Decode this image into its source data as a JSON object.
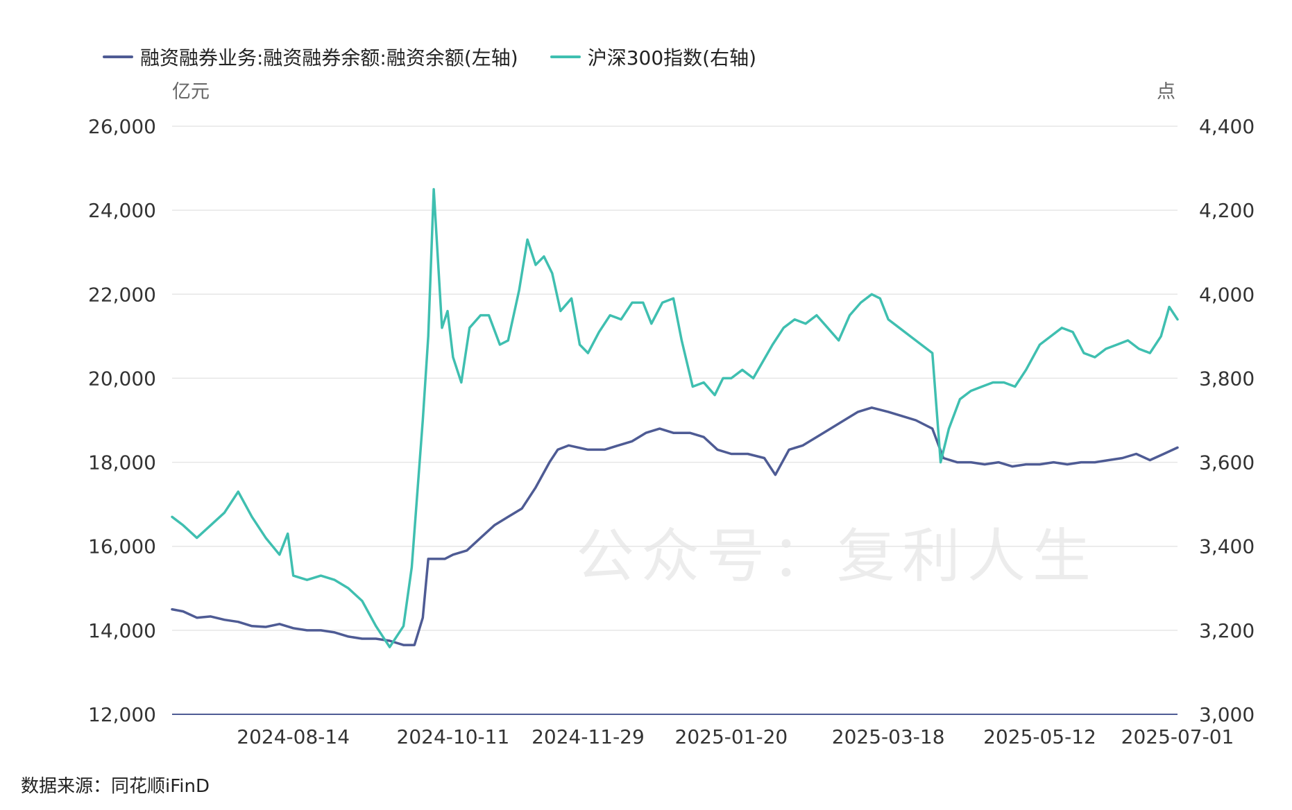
{
  "legend": {
    "series1": "融资融券业务:融资融券余额:融资余额(左轴)",
    "series2": "沪深300指数(右轴)"
  },
  "units": {
    "left": "亿元",
    "right": "点"
  },
  "source": "数据来源：同花顺iFinD",
  "watermark": "公众号：复利人生",
  "colors": {
    "margin": "#4e5b94",
    "index": "#3fbfb0",
    "grid": "#e6e6e6",
    "axis": "#4e5b94"
  },
  "chart_data": {
    "type": "line",
    "x_ticks": [
      "2024-08-14",
      "2024-10-11",
      "2024-11-29",
      "2025-01-20",
      "2025-03-18",
      "2025-05-12",
      "2025-07-01"
    ],
    "y_left": {
      "min": 12000,
      "max": 26000,
      "ticks": [
        "12,000",
        "14,000",
        "16,000",
        "18,000",
        "20,000",
        "22,000",
        "24,000",
        "26,000"
      ]
    },
    "y_right": {
      "min": 3000,
      "max": 4400,
      "ticks": [
        "3,000",
        "3,200",
        "3,400",
        "3,600",
        "3,800",
        "4,000",
        "4,200",
        "4,400"
      ]
    },
    "series": [
      {
        "name": "融资融券业务:融资融券余额:融资余额(左轴)",
        "axis": "left",
        "points": [
          [
            "2024-07-01",
            14500
          ],
          [
            "2024-07-05",
            14450
          ],
          [
            "2024-07-10",
            14300
          ],
          [
            "2024-07-15",
            14330
          ],
          [
            "2024-07-20",
            14250
          ],
          [
            "2024-07-25",
            14200
          ],
          [
            "2024-07-30",
            14100
          ],
          [
            "2024-08-04",
            14080
          ],
          [
            "2024-08-09",
            14150
          ],
          [
            "2024-08-14",
            14050
          ],
          [
            "2024-08-19",
            14000
          ],
          [
            "2024-08-24",
            14000
          ],
          [
            "2024-08-29",
            13950
          ],
          [
            "2024-09-03",
            13850
          ],
          [
            "2024-09-08",
            13800
          ],
          [
            "2024-09-13",
            13800
          ],
          [
            "2024-09-18",
            13750
          ],
          [
            "2024-09-23",
            13650
          ],
          [
            "2024-09-27",
            13650
          ],
          [
            "2024-09-30",
            14300
          ],
          [
            "2024-10-02",
            15700
          ],
          [
            "2024-10-08",
            15700
          ],
          [
            "2024-10-11",
            15800
          ],
          [
            "2024-10-16",
            15900
          ],
          [
            "2024-10-21",
            16200
          ],
          [
            "2024-10-26",
            16500
          ],
          [
            "2024-10-31",
            16700
          ],
          [
            "2024-11-05",
            16900
          ],
          [
            "2024-11-10",
            17400
          ],
          [
            "2024-11-15",
            18000
          ],
          [
            "2024-11-18",
            18300
          ],
          [
            "2024-11-22",
            18400
          ],
          [
            "2024-11-29",
            18300
          ],
          [
            "2024-12-05",
            18300
          ],
          [
            "2024-12-10",
            18400
          ],
          [
            "2024-12-15",
            18500
          ],
          [
            "2024-12-20",
            18700
          ],
          [
            "2024-12-25",
            18800
          ],
          [
            "2024-12-30",
            18700
          ],
          [
            "2025-01-05",
            18700
          ],
          [
            "2025-01-10",
            18600
          ],
          [
            "2025-01-15",
            18300
          ],
          [
            "2025-01-20",
            18200
          ],
          [
            "2025-01-26",
            18200
          ],
          [
            "2025-02-01",
            18100
          ],
          [
            "2025-02-05",
            17700
          ],
          [
            "2025-02-10",
            18300
          ],
          [
            "2025-02-15",
            18400
          ],
          [
            "2025-02-20",
            18600
          ],
          [
            "2025-02-25",
            18800
          ],
          [
            "2025-03-02",
            19000
          ],
          [
            "2025-03-07",
            19200
          ],
          [
            "2025-03-12",
            19300
          ],
          [
            "2025-03-18",
            19200
          ],
          [
            "2025-03-23",
            19100
          ],
          [
            "2025-03-28",
            19000
          ],
          [
            "2025-04-03",
            18800
          ],
          [
            "2025-04-07",
            18100
          ],
          [
            "2025-04-12",
            18000
          ],
          [
            "2025-04-17",
            18000
          ],
          [
            "2025-04-22",
            17950
          ],
          [
            "2025-04-27",
            18000
          ],
          [
            "2025-05-02",
            17900
          ],
          [
            "2025-05-07",
            17950
          ],
          [
            "2025-05-12",
            17950
          ],
          [
            "2025-05-17",
            18000
          ],
          [
            "2025-05-22",
            17950
          ],
          [
            "2025-05-27",
            18000
          ],
          [
            "2025-06-01",
            18000
          ],
          [
            "2025-06-06",
            18050
          ],
          [
            "2025-06-11",
            18100
          ],
          [
            "2025-06-16",
            18200
          ],
          [
            "2025-06-21",
            18050
          ],
          [
            "2025-06-26",
            18200
          ],
          [
            "2025-07-01",
            18350
          ]
        ]
      },
      {
        "name": "沪深300指数(右轴)",
        "axis": "right",
        "points": [
          [
            "2024-07-01",
            3470
          ],
          [
            "2024-07-05",
            3450
          ],
          [
            "2024-07-10",
            3420
          ],
          [
            "2024-07-15",
            3450
          ],
          [
            "2024-07-20",
            3480
          ],
          [
            "2024-07-25",
            3530
          ],
          [
            "2024-07-30",
            3470
          ],
          [
            "2024-08-04",
            3420
          ],
          [
            "2024-08-09",
            3380
          ],
          [
            "2024-08-12",
            3430
          ],
          [
            "2024-08-14",
            3330
          ],
          [
            "2024-08-19",
            3320
          ],
          [
            "2024-08-24",
            3330
          ],
          [
            "2024-08-29",
            3320
          ],
          [
            "2024-09-03",
            3300
          ],
          [
            "2024-09-08",
            3270
          ],
          [
            "2024-09-13",
            3210
          ],
          [
            "2024-09-18",
            3160
          ],
          [
            "2024-09-23",
            3210
          ],
          [
            "2024-09-26",
            3350
          ],
          [
            "2024-09-30",
            3700
          ],
          [
            "2024-10-02",
            3900
          ],
          [
            "2024-10-04",
            4250
          ],
          [
            "2024-10-07",
            3920
          ],
          [
            "2024-10-09",
            3960
          ],
          [
            "2024-10-11",
            3850
          ],
          [
            "2024-10-14",
            3790
          ],
          [
            "2024-10-17",
            3920
          ],
          [
            "2024-10-21",
            3950
          ],
          [
            "2024-10-24",
            3950
          ],
          [
            "2024-10-28",
            3880
          ],
          [
            "2024-10-31",
            3890
          ],
          [
            "2024-11-04",
            4010
          ],
          [
            "2024-11-07",
            4130
          ],
          [
            "2024-11-10",
            4070
          ],
          [
            "2024-11-13",
            4090
          ],
          [
            "2024-11-16",
            4050
          ],
          [
            "2024-11-19",
            3960
          ],
          [
            "2024-11-23",
            3990
          ],
          [
            "2024-11-26",
            3880
          ],
          [
            "2024-11-29",
            3860
          ],
          [
            "2024-12-03",
            3910
          ],
          [
            "2024-12-07",
            3950
          ],
          [
            "2024-12-11",
            3940
          ],
          [
            "2024-12-15",
            3980
          ],
          [
            "2024-12-19",
            3980
          ],
          [
            "2024-12-22",
            3930
          ],
          [
            "2024-12-26",
            3980
          ],
          [
            "2024-12-30",
            3990
          ],
          [
            "2025-01-02",
            3890
          ],
          [
            "2025-01-06",
            3780
          ],
          [
            "2025-01-10",
            3790
          ],
          [
            "2025-01-14",
            3760
          ],
          [
            "2025-01-17",
            3800
          ],
          [
            "2025-01-20",
            3800
          ],
          [
            "2025-01-24",
            3820
          ],
          [
            "2025-01-28",
            3800
          ],
          [
            "2025-02-04",
            3880
          ],
          [
            "2025-02-08",
            3920
          ],
          [
            "2025-02-12",
            3940
          ],
          [
            "2025-02-16",
            3930
          ],
          [
            "2025-02-20",
            3950
          ],
          [
            "2025-02-24",
            3920
          ],
          [
            "2025-02-28",
            3890
          ],
          [
            "2025-03-04",
            3950
          ],
          [
            "2025-03-08",
            3980
          ],
          [
            "2025-03-12",
            4000
          ],
          [
            "2025-03-15",
            3990
          ],
          [
            "2025-03-18",
            3940
          ],
          [
            "2025-03-22",
            3920
          ],
          [
            "2025-03-26",
            3900
          ],
          [
            "2025-03-30",
            3880
          ],
          [
            "2025-04-03",
            3860
          ],
          [
            "2025-04-06",
            3600
          ],
          [
            "2025-04-09",
            3680
          ],
          [
            "2025-04-13",
            3750
          ],
          [
            "2025-04-17",
            3770
          ],
          [
            "2025-04-21",
            3780
          ],
          [
            "2025-04-25",
            3790
          ],
          [
            "2025-04-29",
            3790
          ],
          [
            "2025-05-03",
            3780
          ],
          [
            "2025-05-07",
            3820
          ],
          [
            "2025-05-12",
            3880
          ],
          [
            "2025-05-16",
            3900
          ],
          [
            "2025-05-20",
            3920
          ],
          [
            "2025-05-24",
            3910
          ],
          [
            "2025-05-28",
            3860
          ],
          [
            "2025-06-01",
            3850
          ],
          [
            "2025-06-05",
            3870
          ],
          [
            "2025-06-09",
            3880
          ],
          [
            "2025-06-13",
            3890
          ],
          [
            "2025-06-17",
            3870
          ],
          [
            "2025-06-21",
            3860
          ],
          [
            "2025-06-25",
            3900
          ],
          [
            "2025-06-28",
            3970
          ],
          [
            "2025-07-01",
            3940
          ]
        ]
      }
    ]
  }
}
